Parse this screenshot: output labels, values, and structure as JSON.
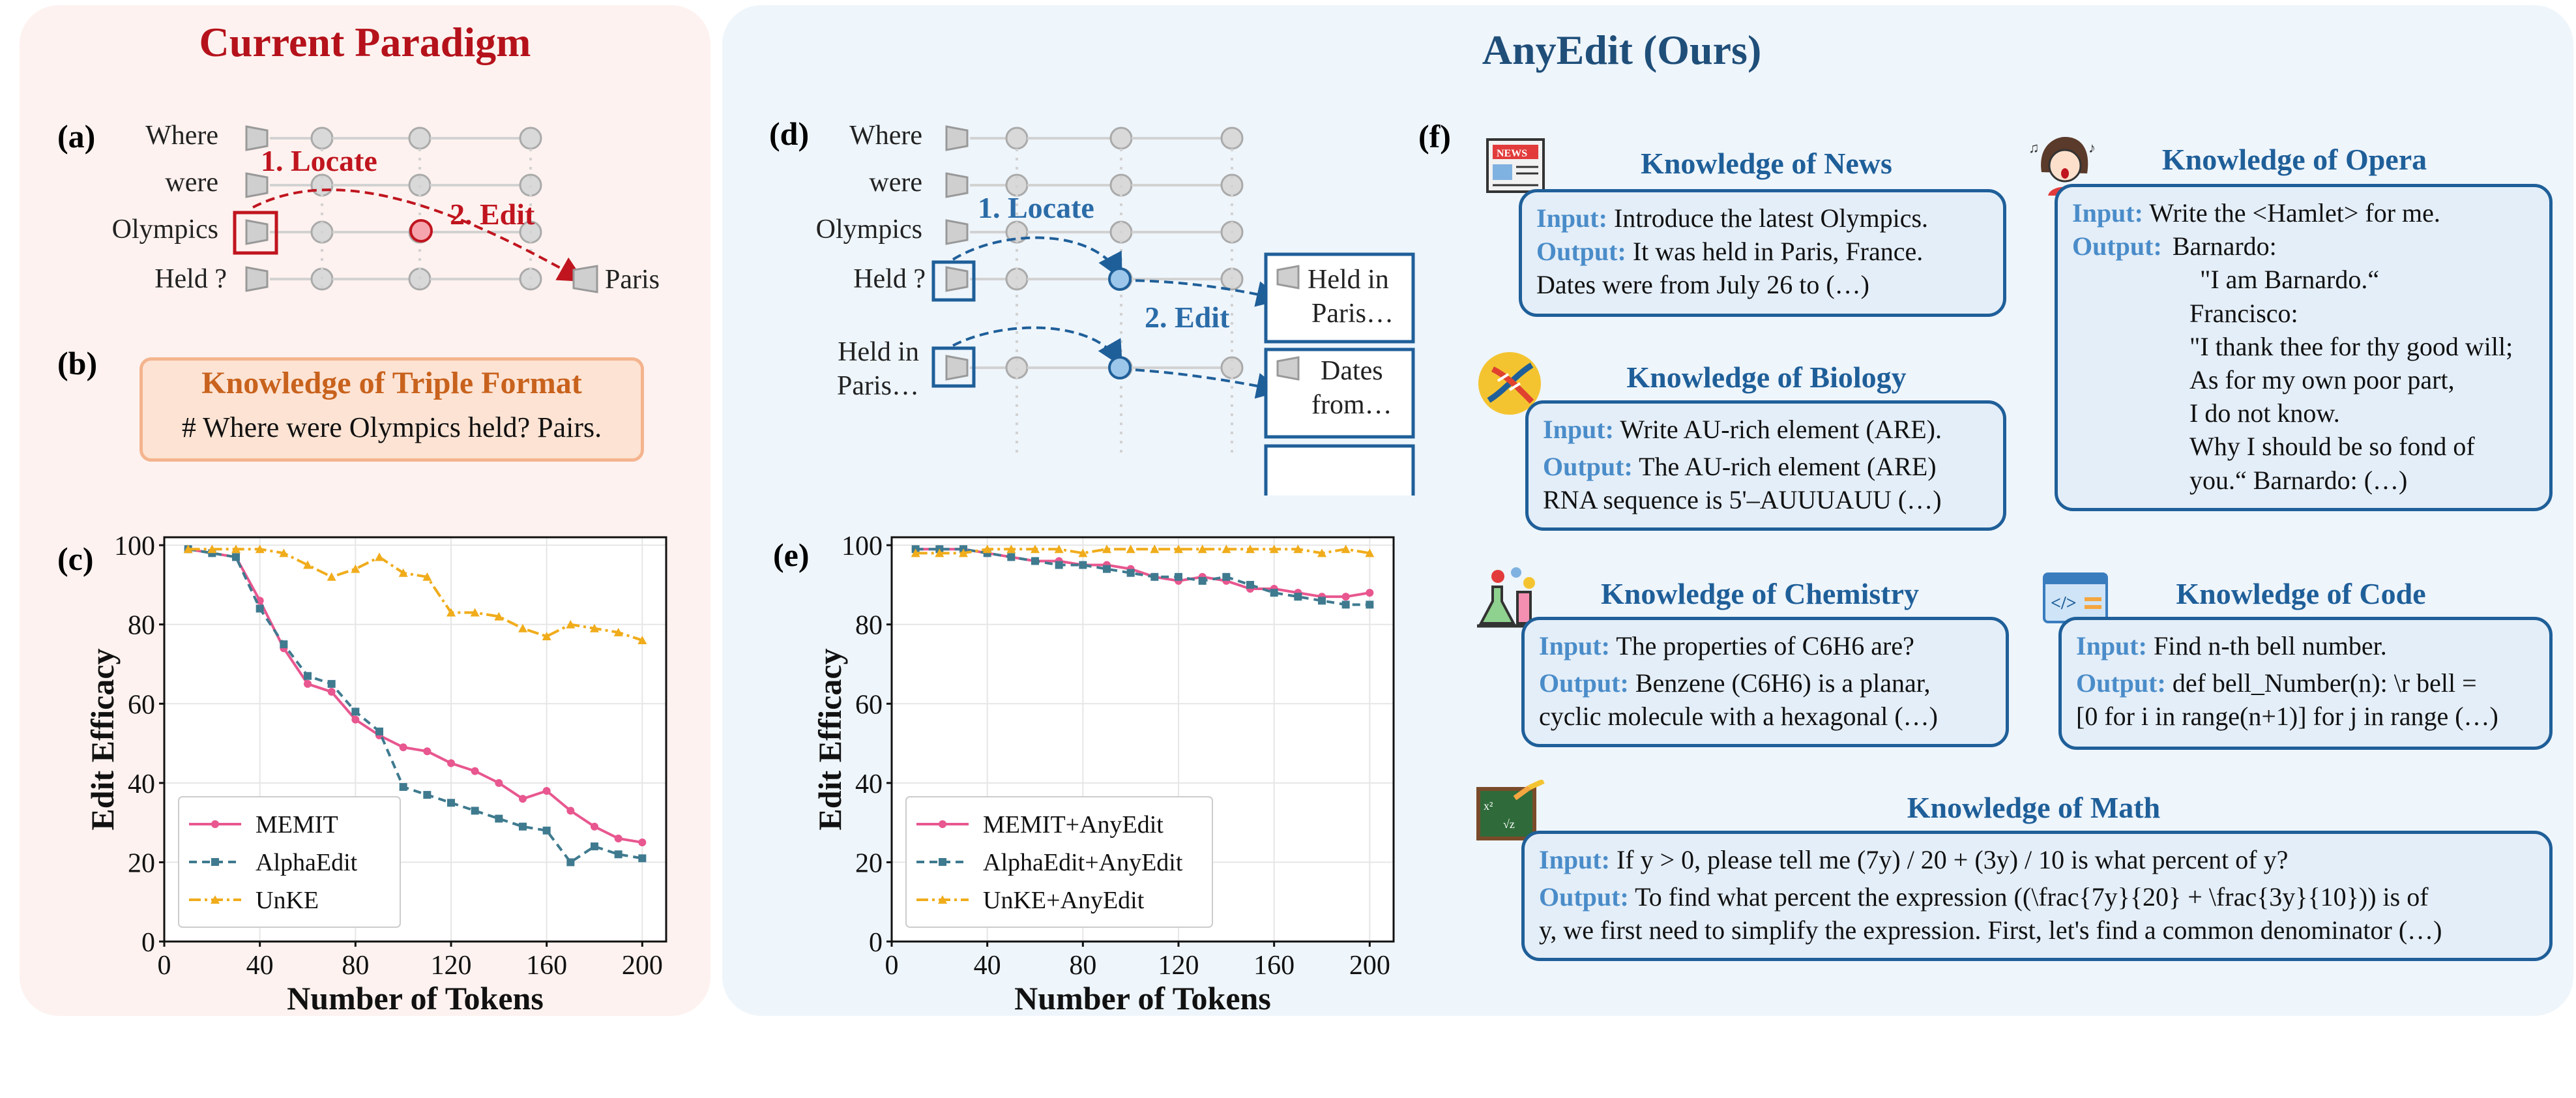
{
  "left": {
    "title": "Current Paradigm",
    "label_a": "(a)",
    "label_b": "(b)",
    "label_c": "(c)",
    "words": [
      "Where",
      "were",
      "Olympics",
      "Held ?"
    ],
    "locate": "1. Locate",
    "edit": "2. Edit",
    "output": "Paris",
    "triple_title": "Knowledge of Triple Format",
    "triple_text": "# Where were Olympics held? Pairs."
  },
  "right": {
    "title": "AnyEdit (Ours)",
    "label_d": "(d)",
    "label_e": "(e)",
    "label_f": "(f)",
    "words": [
      "Where",
      "were",
      "Olympics",
      "Held ?",
      "Held in",
      "Paris…"
    ],
    "locate": "1. Locate",
    "edit": "2. Edit",
    "out1": [
      "Held in",
      "Paris…"
    ],
    "out2": [
      "Dates",
      "from…"
    ]
  },
  "cards": {
    "news": {
      "title": "Knowledge of News",
      "in_k": "Input:",
      "in_v": "Introduce the latest Olympics.",
      "out_k": "Output:",
      "out_v": "It was held in Paris, France.",
      "out_v2": "Dates were from July 26 to (…)"
    },
    "bio": {
      "title": "Knowledge of Biology",
      "in_k": "Input:",
      "in_v": "Write AU-rich element (ARE).",
      "out_k": "Output:",
      "out_v": "The AU-rich element (ARE)",
      "out_v2": "RNA sequence is 5'–AUUUAUU (…)"
    },
    "chem": {
      "title": "Knowledge of Chemistry",
      "in_k": "Input:",
      "in_v": "The properties of C6H6 are?",
      "out_k": "Output:",
      "out_v": "Benzene (C6H6) is a planar,",
      "out_v2": "cyclic molecule with a hexagonal (…)"
    },
    "opera": {
      "title": "Knowledge of Opera",
      "in_k": "Input:",
      "in_v": "Write the <Hamlet> for me.",
      "out_k": "Output:",
      "lines": [
        "Barnardo:",
        "\"I am Barnardo.“",
        "Francisco:",
        "\"I thank thee for thy good will;",
        "As for my own poor part,",
        "I do not know.",
        "Why I should be so fond of",
        "you.“ Barnardo: (…)"
      ]
    },
    "code": {
      "title": "Knowledge of Code",
      "in_k": "Input:",
      "in_v": "Find n-th bell number.",
      "out_k": "Output:",
      "out_v": "def bell_Number(n): \\r bell =",
      "out_v2": "[0 for i in range(n+1)] for j in range (…)"
    },
    "math": {
      "title": "Knowledge of Math",
      "in_k": "Input:",
      "in_v": "If y > 0, please tell me (7y) / 20 + (3y) / 10 is what percent of y?",
      "out_k": "Output:",
      "out_v": "To find what percent the expression ((\\frac{7y}{20} + \\frac{3y}{10})) is of",
      "out_v2": "y, we first need to simplify the expression. First, let's find a common denominator (…)"
    }
  },
  "chart_data": [
    {
      "type": "line",
      "xlabel": "Number of Tokens",
      "ylabel": "Edit Efficacy",
      "xlim": [
        0,
        210
      ],
      "ylim": [
        0,
        102
      ],
      "xticks": [
        0,
        40,
        80,
        120,
        160,
        200
      ],
      "yticks": [
        0,
        20,
        40,
        60,
        80,
        100
      ],
      "legend_position": "bottom-left",
      "grid": true,
      "series": [
        {
          "name": "MEMIT",
          "color": "#e8578f",
          "dash": "",
          "marker": "circle",
          "x": [
            10,
            20,
            30,
            40,
            50,
            60,
            70,
            80,
            90,
            100,
            110,
            120,
            130,
            140,
            150,
            160,
            170,
            180,
            190,
            200
          ],
          "y": [
            99,
            98,
            97,
            86,
            74,
            65,
            63,
            56,
            52,
            49,
            48,
            45,
            43,
            40,
            36,
            38,
            33,
            29,
            26,
            25
          ]
        },
        {
          "name": "AlphaEdit",
          "color": "#3f7a8f",
          "dash": "12,8",
          "marker": "square",
          "x": [
            10,
            20,
            30,
            40,
            50,
            60,
            70,
            80,
            90,
            100,
            110,
            120,
            130,
            140,
            150,
            160,
            170,
            180,
            190,
            200
          ],
          "y": [
            99,
            98,
            97,
            84,
            75,
            67,
            65,
            58,
            53,
            39,
            37,
            35,
            33,
            31,
            29,
            28,
            20,
            24,
            22,
            21
          ]
        },
        {
          "name": "UnKE",
          "color": "#f0ac1b",
          "dash": "18,6,4,6",
          "marker": "triangle",
          "x": [
            10,
            20,
            30,
            40,
            50,
            60,
            70,
            80,
            90,
            100,
            110,
            120,
            130,
            140,
            150,
            160,
            170,
            180,
            190,
            200
          ],
          "y": [
            99,
            99,
            99,
            99,
            98,
            95,
            92,
            94,
            97,
            93,
            92,
            83,
            83,
            82,
            79,
            77,
            80,
            79,
            78,
            76
          ]
        }
      ]
    },
    {
      "type": "line",
      "xlabel": "Number of Tokens",
      "ylabel": "Edit Efficacy",
      "xlim": [
        0,
        210
      ],
      "ylim": [
        0,
        102
      ],
      "xticks": [
        0,
        40,
        80,
        120,
        160,
        200
      ],
      "yticks": [
        0,
        20,
        40,
        60,
        80,
        100
      ],
      "legend_position": "bottom-left",
      "grid": true,
      "series": [
        {
          "name": "MEMIT+AnyEdit",
          "color": "#e8578f",
          "dash": "",
          "marker": "circle",
          "x": [
            10,
            20,
            30,
            40,
            50,
            60,
            70,
            80,
            90,
            100,
            110,
            120,
            130,
            140,
            150,
            160,
            170,
            180,
            190,
            200
          ],
          "y": [
            99,
            99,
            99,
            98,
            97,
            96,
            96,
            95,
            95,
            94,
            92,
            91,
            92,
            91,
            89,
            89,
            88,
            87,
            87,
            88
          ]
        },
        {
          "name": "AlphaEdit+AnyEdit",
          "color": "#3f7a8f",
          "dash": "12,8",
          "marker": "square",
          "x": [
            10,
            20,
            30,
            40,
            50,
            60,
            70,
            80,
            90,
            100,
            110,
            120,
            130,
            140,
            150,
            160,
            170,
            180,
            190,
            200
          ],
          "y": [
            99,
            99,
            99,
            98,
            97,
            96,
            95,
            95,
            94,
            93,
            92,
            92,
            91,
            92,
            90,
            88,
            87,
            86,
            85,
            85
          ]
        },
        {
          "name": "UnKE+AnyEdit",
          "color": "#f0ac1b",
          "dash": "18,6,4,6",
          "marker": "triangle",
          "x": [
            10,
            20,
            30,
            40,
            50,
            60,
            70,
            80,
            90,
            100,
            110,
            120,
            130,
            140,
            150,
            160,
            170,
            180,
            190,
            200
          ],
          "y": [
            98,
            98,
            98,
            99,
            99,
            99,
            99,
            98,
            99,
            99,
            99,
            99,
            99,
            99,
            99,
            99,
            99,
            98,
            99,
            98
          ]
        }
      ]
    }
  ]
}
